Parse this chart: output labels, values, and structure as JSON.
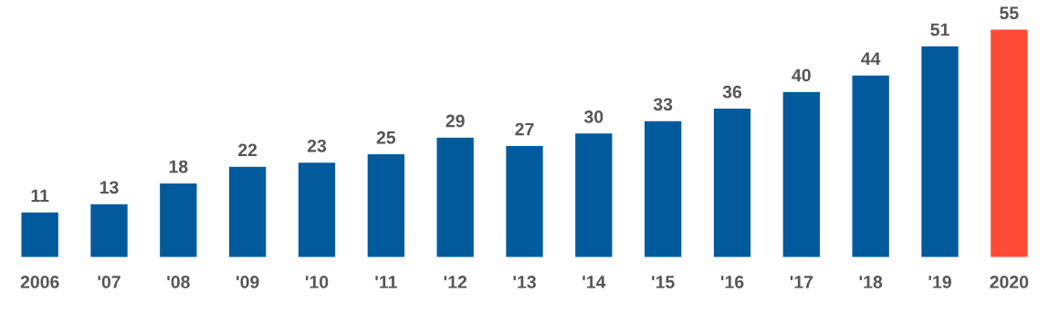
{
  "chart_data": {
    "type": "bar",
    "categories": [
      "2006",
      "'07",
      "'08",
      "'09",
      "'10",
      "'11",
      "'12",
      "'13",
      "'14",
      "'15",
      "'16",
      "'17",
      "'18",
      "'19",
      "2020"
    ],
    "values": [
      11,
      13,
      18,
      22,
      23,
      25,
      29,
      27,
      30,
      33,
      36,
      40,
      44,
      51,
      55
    ],
    "colors": [
      "#005a9c",
      "#005a9c",
      "#005a9c",
      "#005a9c",
      "#005a9c",
      "#005a9c",
      "#005a9c",
      "#005a9c",
      "#005a9c",
      "#005a9c",
      "#005a9c",
      "#005a9c",
      "#005a9c",
      "#005a9c",
      "#ff4b36"
    ],
    "data_labels": true,
    "grid": false,
    "legend": false,
    "tick_labels": "x"
  }
}
